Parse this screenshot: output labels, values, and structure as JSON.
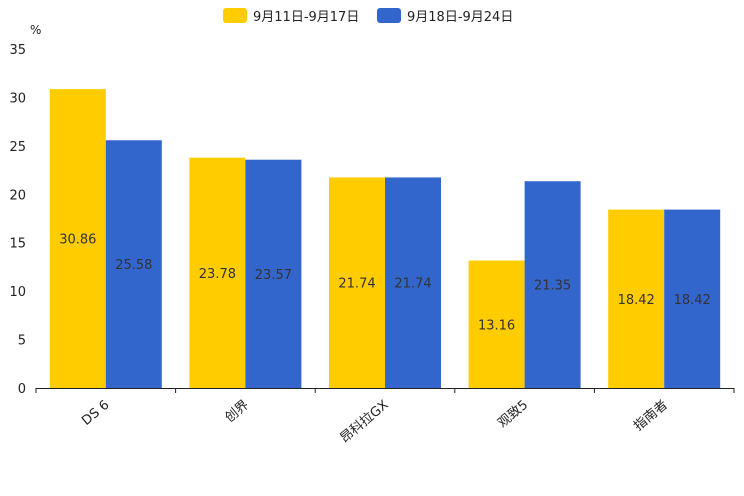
{
  "chart_data": {
    "type": "bar",
    "title": "",
    "ylabel": "%",
    "xlabel": "",
    "ylim": [
      0,
      35
    ],
    "yticks": [
      0,
      5,
      10,
      15,
      20,
      25,
      30,
      35
    ],
    "categories": [
      "DS 6",
      "创界",
      "昂科拉GX",
      "观致5",
      "指南者"
    ],
    "series": [
      {
        "name": "9月11日-9月17日",
        "color": "#FFCC00",
        "values": [
          30.86,
          23.78,
          21.74,
          13.16,
          18.42
        ]
      },
      {
        "name": "9月18日-9月24日",
        "color": "#3366CC",
        "values": [
          25.58,
          23.57,
          21.74,
          21.35,
          18.42
        ]
      }
    ],
    "legend_position": "top-center",
    "grid": false
  }
}
